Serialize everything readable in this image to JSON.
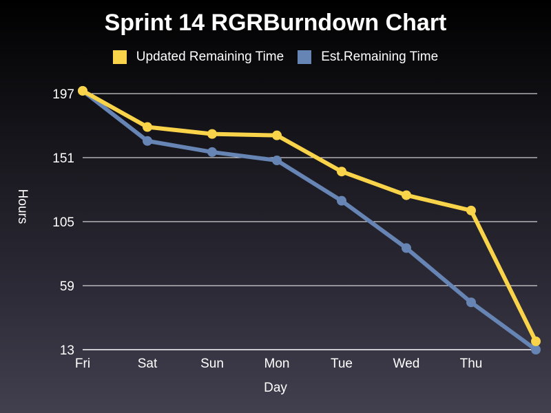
{
  "chart_data": {
    "type": "line",
    "title": "Sprint 14 RGRBurndown Chart",
    "xlabel": "Day",
    "ylabel": "Hours",
    "categories": [
      "Fri",
      "Sat",
      "Sun",
      "Mon",
      "Tue",
      "Wed",
      "Thu",
      ""
    ],
    "x_tick_labels": [
      "Fri",
      "Sat",
      "Sun",
      "Mon",
      "Tue",
      "Wed",
      "Thu"
    ],
    "y_ticks": [
      13,
      59,
      105,
      151,
      197
    ],
    "ylim": [
      13,
      197
    ],
    "grid": true,
    "legend_position": "top",
    "series": [
      {
        "name": "Updated Remaining Time",
        "color": "#f9d44a",
        "values": [
          199,
          173,
          168,
          167,
          141,
          124,
          113,
          19
        ]
      },
      {
        "name": "Est.Remaining Time",
        "color": "#6785b4",
        "values": [
          199,
          163,
          155,
          149,
          120,
          86,
          47,
          13
        ]
      }
    ]
  }
}
